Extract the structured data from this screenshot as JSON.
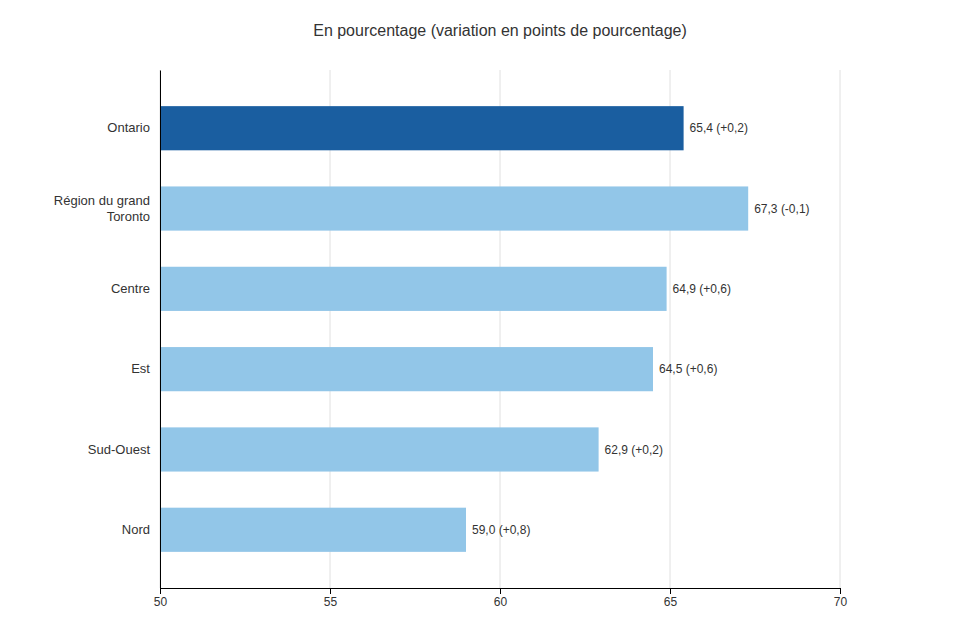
{
  "chart_data": {
    "type": "bar",
    "orientation": "horizontal",
    "title": "En pourcentage (variation en points de pourcentage)",
    "categories": [
      "Nord",
      "Sud-Ouest",
      "Est",
      "Centre",
      "Région du grand\nToronto",
      "Ontario"
    ],
    "values": [
      59.0,
      62.9,
      64.5,
      64.9,
      67.3,
      65.4
    ],
    "value_labels": [
      "59,0 (+0,8)",
      "62,9 (+0,2)",
      "64,5 (+0,6)",
      "64,9 (+0,6)",
      "67,3 (-0,1)",
      "65,4 (+0,2)"
    ],
    "colors": [
      "#92C6E8",
      "#92C6E8",
      "#92C6E8",
      "#92C6E8",
      "#92C6E8",
      "#1A5EA0"
    ],
    "xlim": [
      50,
      70
    ],
    "xticks": [
      50,
      55,
      60,
      65,
      70
    ],
    "grid": true
  }
}
